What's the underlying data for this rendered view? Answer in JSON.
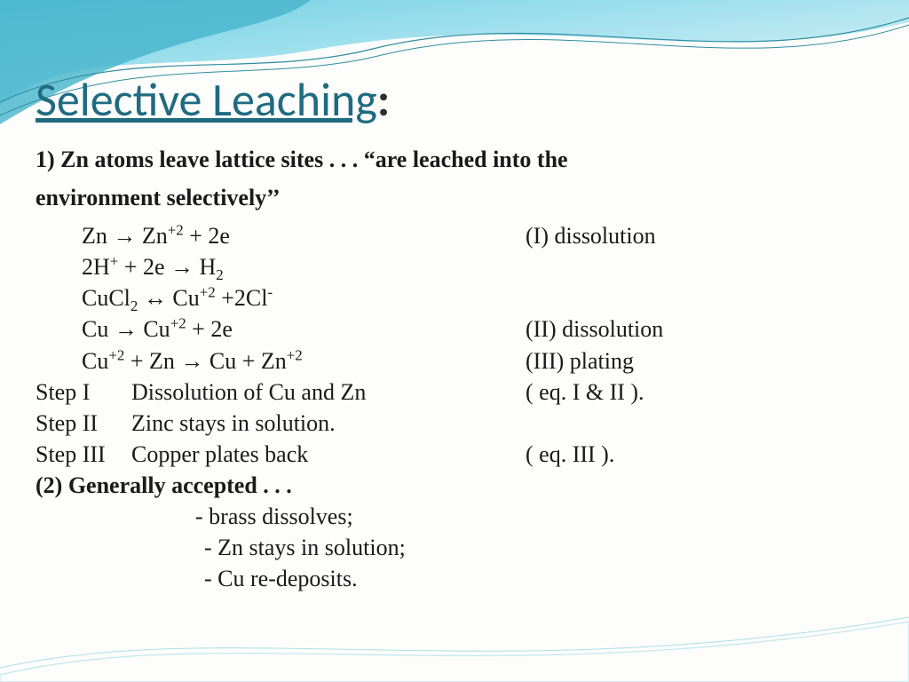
{
  "title": "Selective Leaching",
  "title_color": "#1f6b80",
  "title_fontsize": 52,
  "body_fontsize": 26,
  "body_color": "#1a1a1a",
  "wave_colors": {
    "light": "#b8e8f2",
    "mid": "#6bc8db",
    "dark": "#2fa0ba",
    "line": "#3a8ea0"
  },
  "intro": {
    "num": "1)",
    "part1": "Zn atoms leave lattice sites . . . “are leached into the",
    "part2": "environment selectively’’"
  },
  "equations": [
    {
      "lhs_html": "Zn → Zn<sup>+2</sup> + 2e",
      "rhs": "(I) dissolution"
    },
    {
      "lhs_html": "2H<sup>+</sup> + 2e → H<sub>2</sub>",
      "rhs": ""
    },
    {
      "lhs_html": "CuCl<sub>2</sub> ↔ Cu<sup>+2</sup> +2Cl<sup>-</sup>",
      "rhs": ""
    },
    {
      "lhs_html": "Cu  →  Cu<sup>+2</sup> + 2e",
      "rhs": "(II) dissolution"
    },
    {
      "lhs_html": " Cu<sup>+2</sup> + Zn  → Cu + Zn<sup>+2</sup>",
      "rhs": "(III) plating"
    }
  ],
  "steps": [
    {
      "label": "Step I",
      "desc": "Dissolution of Cu and Zn",
      "note": "( eq. I & II )."
    },
    {
      "label": "Step II",
      "desc": "Zinc stays in solution.",
      "note": ""
    },
    {
      "label": "Step III",
      "desc": "Copper plates back",
      "note": "( eq. III )."
    }
  ],
  "second_heading": "(2) Generally accepted . . .",
  "bullets": [
    "brass dissolves;",
    "Zn stays in solution;",
    "Cu re-deposits."
  ]
}
